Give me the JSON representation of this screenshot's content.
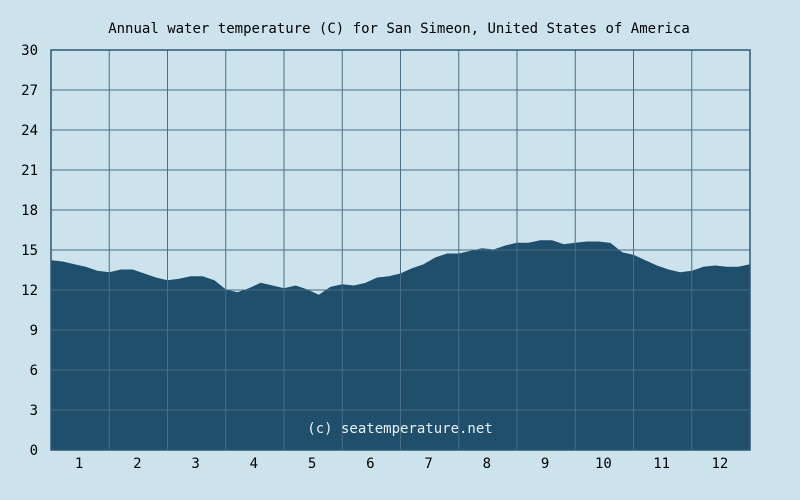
{
  "chart_data": {
    "type": "area",
    "title": "Annual water temperature (C) for San Simeon, United States of America",
    "xlabel": "",
    "ylabel": "",
    "x_ticks": [
      "1",
      "2",
      "3",
      "4",
      "5",
      "6",
      "7",
      "8",
      "9",
      "10",
      "11",
      "12"
    ],
    "y_ticks": [
      "0",
      "3",
      "6",
      "9",
      "12",
      "15",
      "18",
      "21",
      "24",
      "27",
      "30"
    ],
    "xlim": [
      0.5,
      12.5
    ],
    "ylim": [
      0,
      30
    ],
    "grid": true,
    "watermark": "(c) seatemperature.net",
    "colors": {
      "background": "#cce3ee",
      "fill": "#1f4f6b",
      "grid": "#4a6e86",
      "axis": "#2e5873"
    },
    "series": [
      {
        "x": [
          0.5,
          0.7,
          0.9,
          1.1,
          1.3,
          1.5,
          1.7,
          1.9,
          2.1,
          2.3,
          2.5,
          2.7,
          2.9,
          3.1,
          3.3,
          3.5,
          3.7,
          3.9,
          4.1,
          4.3,
          4.5,
          4.7,
          4.9,
          5.1,
          5.3,
          5.5,
          5.7,
          5.9,
          6.1,
          6.3,
          6.5,
          6.7,
          6.9,
          7.1,
          7.3,
          7.5,
          7.7,
          7.9,
          8.1,
          8.3,
          8.5,
          8.7,
          8.9,
          9.1,
          9.3,
          9.5,
          9.7,
          9.9,
          10.1,
          10.3,
          10.5,
          10.7,
          10.9,
          11.1,
          11.3,
          11.5,
          11.7,
          11.9,
          12.1,
          12.3,
          12.5
        ],
        "values": [
          14.2,
          14.1,
          13.9,
          13.7,
          13.4,
          13.3,
          13.5,
          13.5,
          13.2,
          12.9,
          12.7,
          12.8,
          13.0,
          13.0,
          12.7,
          12.0,
          11.8,
          12.1,
          12.5,
          12.3,
          12.1,
          12.3,
          12.0,
          11.6,
          12.2,
          12.4,
          12.3,
          12.5,
          12.9,
          13.0,
          13.2,
          13.6,
          13.9,
          14.4,
          14.7,
          14.7,
          14.9,
          15.1,
          15.0,
          15.3,
          15.5,
          15.5,
          15.7,
          15.7,
          15.4,
          15.5,
          15.6,
          15.6,
          15.5,
          14.8,
          14.6,
          14.2,
          13.8,
          13.5,
          13.3,
          13.4,
          13.7,
          13.8,
          13.7,
          13.7,
          13.9
        ]
      }
    ]
  }
}
